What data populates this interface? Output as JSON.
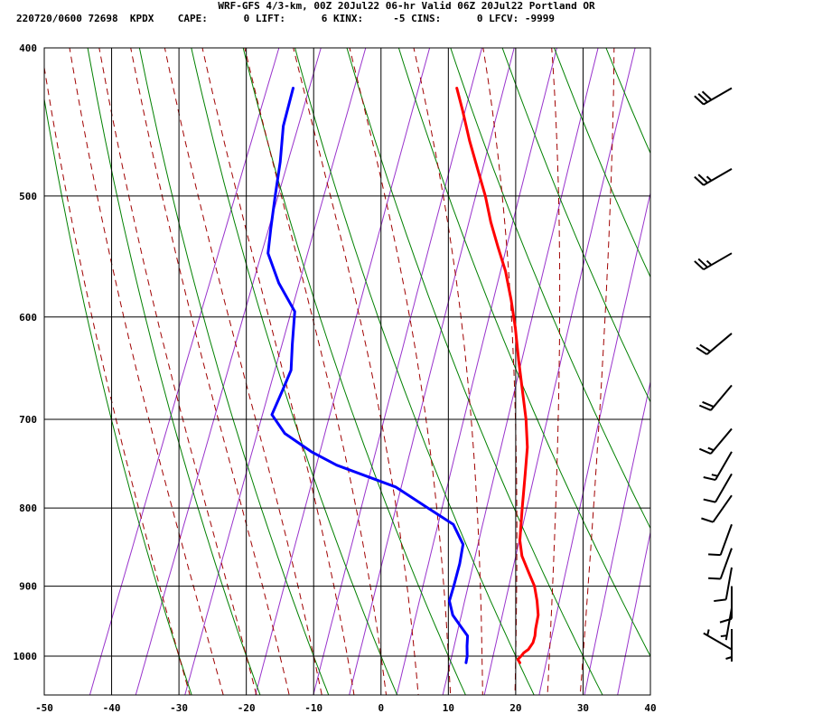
{
  "header": {
    "title": "WRF-GFS 4/3-km, 00Z 20Jul22 06-hr Valid 06Z 20Jul22 Portland OR",
    "stats": "220720/0600 72698  KPDX    CAPE:      0 LIFT:      6 KINX:     -5 CINS:      0 LFCV: -9999"
  },
  "chart_data": {
    "type": "skew-t",
    "xlim": [
      -50,
      40
    ],
    "ylim": [
      1040,
      400
    ],
    "y_scale": "log",
    "x_ticks": [
      -50,
      -40,
      -30,
      -20,
      -10,
      0,
      10,
      20,
      30,
      40
    ],
    "y_ticks": [
      400,
      500,
      600,
      700,
      800,
      900,
      1000
    ],
    "grid": true,
    "series": [
      {
        "role": "temperature",
        "color": "#ff0000",
        "points": [
          [
            21.0,
            1010
          ],
          [
            20.5,
            1005
          ],
          [
            20.8,
            1000
          ],
          [
            21.0,
            995
          ],
          [
            21.5,
            990
          ],
          [
            21.8,
            980
          ],
          [
            21.7,
            970
          ],
          [
            21.4,
            960
          ],
          [
            21.0,
            940
          ],
          [
            20.0,
            920
          ],
          [
            18.8,
            900
          ],
          [
            17.0,
            880
          ],
          [
            15.2,
            860
          ],
          [
            14.0,
            840
          ],
          [
            12.5,
            800
          ],
          [
            11.0,
            760
          ],
          [
            9.8,
            730
          ],
          [
            8.0,
            700
          ],
          [
            5.8,
            670
          ],
          [
            3.5,
            640
          ],
          [
            1.2,
            610
          ],
          [
            -1.0,
            585
          ],
          [
            -3.5,
            560
          ],
          [
            -6.0,
            540
          ],
          [
            -8.5,
            520
          ],
          [
            -10.8,
            500
          ],
          [
            -13.5,
            480
          ],
          [
            -16.3,
            460
          ],
          [
            -19.0,
            440
          ],
          [
            -21.2,
            425
          ]
        ]
      },
      {
        "role": "dewpoint",
        "color": "#0000ff",
        "points": [
          [
            13.0,
            1010
          ],
          [
            12.8,
            1000
          ],
          [
            12.2,
            985
          ],
          [
            11.7,
            970
          ],
          [
            10.0,
            955
          ],
          [
            8.3,
            940
          ],
          [
            7.0,
            920
          ],
          [
            6.8,
            900
          ],
          [
            6.4,
            870
          ],
          [
            5.8,
            845
          ],
          [
            3.2,
            820
          ],
          [
            -1.5,
            800
          ],
          [
            -7.5,
            775
          ],
          [
            -17.5,
            750
          ],
          [
            -22.0,
            735
          ],
          [
            -27.0,
            715
          ],
          [
            -30.0,
            695
          ],
          [
            -29.8,
            670
          ],
          [
            -29.7,
            650
          ],
          [
            -31.0,
            625
          ],
          [
            -32.5,
            595
          ],
          [
            -36.5,
            570
          ],
          [
            -39.8,
            545
          ],
          [
            -40.8,
            525
          ],
          [
            -42.0,
            500
          ],
          [
            -43.2,
            475
          ],
          [
            -44.8,
            450
          ],
          [
            -45.5,
            425
          ]
        ]
      }
    ],
    "wind_barbs": [
      {
        "p": 425,
        "dir": 240,
        "spd": 30
      },
      {
        "p": 480,
        "dir": 240,
        "spd": 25
      },
      {
        "p": 545,
        "dir": 240,
        "spd": 25
      },
      {
        "p": 615,
        "dir": 230,
        "spd": 20
      },
      {
        "p": 665,
        "dir": 220,
        "spd": 20
      },
      {
        "p": 710,
        "dir": 220,
        "spd": 15
      },
      {
        "p": 735,
        "dir": 210,
        "spd": 15
      },
      {
        "p": 760,
        "dir": 210,
        "spd": 10
      },
      {
        "p": 785,
        "dir": 215,
        "spd": 10
      },
      {
        "p": 820,
        "dir": 200,
        "spd": 10
      },
      {
        "p": 850,
        "dir": 200,
        "spd": 10
      },
      {
        "p": 875,
        "dir": 190,
        "spd": 10
      },
      {
        "p": 900,
        "dir": 180,
        "spd": 10
      },
      {
        "p": 930,
        "dir": 190,
        "spd": 5
      },
      {
        "p": 960,
        "dir": 180,
        "spd": 5
      },
      {
        "p": 990,
        "dir": 300,
        "spd": 5
      }
    ],
    "isotherm_step": 10,
    "dry_adiabats": [
      -30,
      -20,
      -10,
      0,
      10,
      20,
      30,
      40,
      50,
      60,
      70,
      80,
      90,
      100,
      110
    ],
    "moist_adiabats": [
      -30,
      -25,
      -20,
      -15,
      -10,
      -5,
      0,
      5,
      10,
      15,
      20,
      25,
      30
    ],
    "mixing_ratios": [
      0.1,
      0.2,
      0.4,
      1,
      2,
      3,
      5,
      8,
      12,
      20,
      30,
      40
    ],
    "colors": {
      "grid": "#000000",
      "dry_adiabat": "#008000",
      "moist_adiabat": "#a00000",
      "mixing_ratio": "#9933cc",
      "temperature": "#ff0000",
      "dewpoint": "#0000ff",
      "barb": "#000000"
    }
  }
}
